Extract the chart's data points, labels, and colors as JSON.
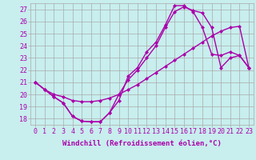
{
  "background_color": "#c8eeee",
  "grid_color": "#aaaaaa",
  "line_color": "#aa00aa",
  "marker": "D",
  "markersize": 2.5,
  "linewidth": 1.0,
  "xlabel": "Windchill (Refroidissement éolien,°C)",
  "xlabel_fontsize": 6.5,
  "tick_fontsize": 6.0,
  "xlim": [
    -0.5,
    23.5
  ],
  "ylim": [
    17.5,
    27.5
  ],
  "yticks": [
    18,
    19,
    20,
    21,
    22,
    23,
    24,
    25,
    26,
    27
  ],
  "xticks": [
    0,
    1,
    2,
    3,
    4,
    5,
    6,
    7,
    8,
    9,
    10,
    11,
    12,
    13,
    14,
    15,
    16,
    17,
    18,
    19,
    20,
    21,
    22,
    23
  ],
  "line1_x": [
    0,
    1,
    2,
    3,
    4,
    5,
    6,
    7,
    8,
    9,
    10,
    11,
    12,
    13,
    14,
    15,
    16,
    17,
    18,
    19,
    20,
    21,
    22,
    23
  ],
  "line1_y": [
    21.0,
    20.4,
    19.8,
    19.3,
    18.2,
    17.8,
    17.75,
    17.75,
    18.5,
    19.5,
    21.5,
    22.2,
    23.5,
    24.3,
    25.7,
    27.3,
    27.3,
    26.8,
    25.5,
    23.3,
    23.2,
    23.5,
    23.2,
    22.2
  ],
  "line2_x": [
    0,
    1,
    2,
    3,
    4,
    5,
    6,
    7,
    8,
    9,
    10,
    11,
    12,
    13,
    14,
    15,
    16,
    17,
    18,
    19,
    20,
    21,
    22,
    23
  ],
  "line2_y": [
    21.0,
    20.4,
    20.0,
    19.8,
    19.5,
    19.4,
    19.4,
    19.5,
    19.7,
    20.0,
    20.4,
    20.8,
    21.3,
    21.8,
    22.3,
    22.8,
    23.3,
    23.8,
    24.3,
    24.8,
    25.2,
    25.5,
    25.6,
    22.2
  ],
  "line3_x": [
    0,
    1,
    2,
    3,
    4,
    5,
    6,
    7,
    8,
    9,
    10,
    11,
    12,
    13,
    14,
    15,
    16,
    17,
    18,
    19,
    20,
    21,
    22,
    23
  ],
  "line3_y": [
    21.0,
    20.4,
    19.8,
    19.3,
    18.2,
    17.8,
    17.75,
    17.75,
    18.5,
    20.0,
    21.2,
    22.0,
    23.0,
    24.0,
    25.5,
    26.8,
    27.2,
    26.9,
    26.7,
    25.5,
    22.2,
    23.0,
    23.2,
    22.2
  ]
}
